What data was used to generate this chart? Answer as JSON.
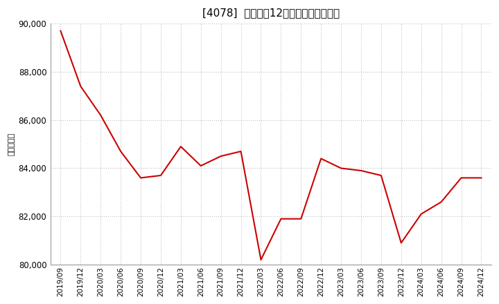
{
  "title": "[4078]  売上高の12か月移動合計の推移",
  "ylabel": "（百万円）",
  "line_color": "#cc0000",
  "bg_color": "#ffffff",
  "plot_bg_color": "#ffffff",
  "grid_color": "#bbbbbb",
  "ylim": [
    80000,
    90000
  ],
  "yticks": [
    80000,
    82000,
    84000,
    86000,
    88000,
    90000
  ],
  "dates": [
    "2019/09",
    "2019/12",
    "2020/03",
    "2020/06",
    "2020/09",
    "2020/12",
    "2021/03",
    "2021/06",
    "2021/09",
    "2021/12",
    "2022/03",
    "2022/06",
    "2022/09",
    "2022/12",
    "2023/03",
    "2023/06",
    "2023/09",
    "2023/12",
    "2024/03",
    "2024/06",
    "2024/09",
    "2024/12"
  ],
  "values": [
    89700,
    87400,
    86200,
    84700,
    83600,
    83700,
    84900,
    84100,
    84500,
    84700,
    80200,
    81900,
    81900,
    84400,
    84000,
    83900,
    83700,
    80900,
    82100,
    82600,
    83600,
    83600
  ],
  "title_fontsize": 11,
  "ylabel_fontsize": 8,
  "tick_fontsize": 8.5,
  "xtick_fontsize": 7.5
}
